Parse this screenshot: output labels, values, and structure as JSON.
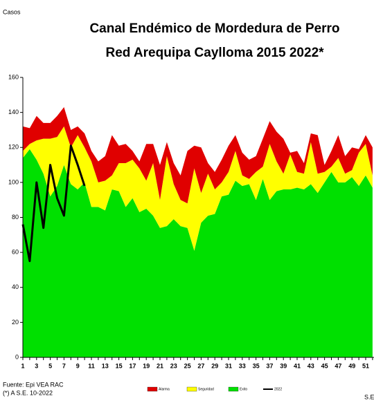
{
  "chart_data": {
    "type": "area",
    "title": "Canal Endémico de Mordedura de Perro",
    "subtitle": "Red Arequipa Caylloma 2015 2022*",
    "y_label": "Casos",
    "x_label": "S.E",
    "source": "Fuente: Epi VEA RAC",
    "note": "(*) A S.E. 10-2022",
    "categories": [
      1,
      null,
      3,
      null,
      5,
      null,
      7,
      null,
      9,
      null,
      11,
      null,
      13,
      null,
      15,
      null,
      17,
      null,
      19,
      null,
      21,
      null,
      23,
      null,
      25,
      null,
      27,
      null,
      29,
      null,
      31,
      null,
      33,
      null,
      35,
      null,
      37,
      null,
      39,
      null,
      41,
      null,
      43,
      null,
      45,
      null,
      47,
      null,
      49,
      null,
      51,
      null
    ],
    "ylim": [
      0,
      160
    ],
    "yticks": [
      0,
      20,
      40,
      60,
      80,
      100,
      120,
      140,
      160
    ],
    "stacked": true,
    "series": [
      {
        "name": "Exito",
        "color": "#00e000",
        "type": "area",
        "values": [
          114,
          119,
          113,
          105,
          92,
          98,
          110,
          99,
          96,
          100,
          86,
          86,
          84,
          96,
          95,
          86,
          91,
          83,
          85,
          81,
          74,
          75,
          79,
          75,
          74,
          61,
          77,
          81,
          82,
          92,
          93,
          101,
          98,
          99,
          90,
          102,
          90,
          95,
          96,
          96,
          97,
          96,
          99,
          94,
          100,
          106,
          100,
          100,
          103,
          98,
          104,
          97
        ]
      },
      {
        "name": "Seguridad",
        "color": "#ffff00",
        "type": "area",
        "values": [
          4,
          3,
          11,
          20,
          33,
          28,
          22,
          21,
          31,
          20,
          26,
          14,
          17,
          8,
          16,
          25,
          22,
          25,
          16,
          30,
          16,
          40,
          20,
          15,
          14,
          47,
          17,
          24,
          14,
          8,
          13,
          17,
          6,
          3,
          16,
          7,
          32,
          17,
          9,
          20,
          9,
          9,
          24,
          11,
          6,
          3,
          14,
          5,
          4,
          19,
          18,
          7
        ]
      },
      {
        "name": "Alarma",
        "color": "#e00000",
        "type": "area",
        "values": [
          14,
          9,
          14,
          9,
          9,
          12,
          11,
          10,
          5,
          8,
          6,
          12,
          14,
          23,
          10,
          11,
          5,
          4,
          21,
          11,
          20,
          8,
          12,
          14,
          30,
          13,
          26,
          6,
          10,
          13,
          15,
          9,
          13,
          11,
          9,
          16,
          13,
          17,
          20,
          1,
          12,
          6,
          5,
          22,
          4,
          9,
          13,
          10,
          13,
          2,
          5,
          16
        ]
      },
      {
        "name": "2022",
        "color": "#000000",
        "type": "line",
        "values": [
          76,
          55,
          100,
          74,
          110,
          91,
          81,
          121,
          110,
          98,
          null,
          null,
          null,
          null,
          null,
          null,
          null,
          null,
          null,
          null,
          null,
          null,
          null,
          null,
          null,
          null,
          null,
          null,
          null,
          null,
          null,
          null,
          null,
          null,
          null,
          null,
          null,
          null,
          null,
          null,
          null,
          null,
          null,
          null,
          null,
          null,
          null,
          null,
          null,
          null,
          null,
          null
        ]
      }
    ]
  }
}
